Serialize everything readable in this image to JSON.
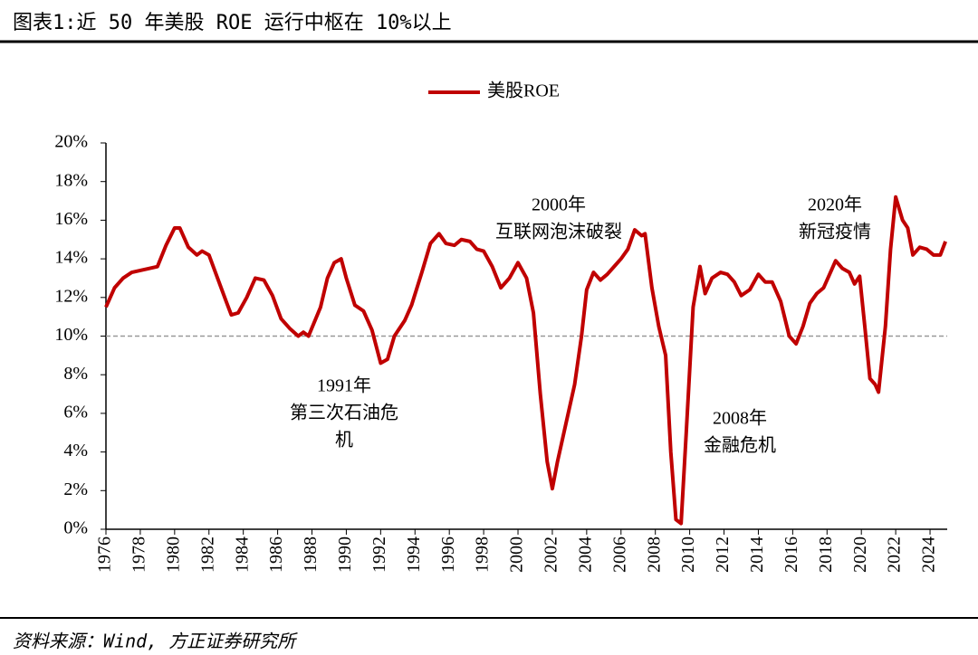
{
  "chart_data": {
    "type": "line",
    "title": "图表1:近 50 年美股 ROE 运行中枢在 10%以上",
    "source": "资料来源：Wind, 方正证券研究所",
    "x": [
      1976.0,
      1976.5,
      1977.0,
      1977.5,
      1978.0,
      1979.0,
      1979.5,
      1980.0,
      1980.3,
      1980.8,
      1981.3,
      1981.6,
      1982.0,
      1982.5,
      1983.0,
      1983.3,
      1983.7,
      1984.2,
      1984.7,
      1985.2,
      1985.7,
      1986.2,
      1986.7,
      1987.2,
      1987.5,
      1987.8,
      1988.5,
      1988.9,
      1989.3,
      1989.7,
      1990.0,
      1990.5,
      1991.0,
      1991.5,
      1992.0,
      1992.4,
      1992.8,
      1993.4,
      1993.8,
      1994.4,
      1994.9,
      1995.4,
      1995.8,
      1996.3,
      1996.7,
      1997.2,
      1997.6,
      1998.0,
      1998.5,
      1999.0,
      1999.5,
      2000.0,
      2000.5,
      2000.9,
      2001.3,
      2001.7,
      2002.0,
      2002.3,
      2002.8,
      2003.3,
      2003.7,
      2004.0,
      2004.4,
      2004.8,
      2005.2,
      2005.6,
      2006.0,
      2006.4,
      2006.8,
      2007.2,
      2007.4,
      2007.8,
      2008.2,
      2008.6,
      2008.9,
      2009.2,
      2009.5,
      2009.8,
      2010.2,
      2010.6,
      2010.9,
      2011.3,
      2011.8,
      2012.2,
      2012.6,
      2013.0,
      2013.5,
      2014.0,
      2014.4,
      2014.8,
      2015.3,
      2015.8,
      2016.2,
      2016.6,
      2017.0,
      2017.4,
      2017.8,
      2018.2,
      2018.5,
      2018.9,
      2019.3,
      2019.6,
      2019.9,
      2020.2,
      2020.5,
      2020.8,
      2021.0,
      2021.4,
      2021.7,
      2022.0,
      2022.4,
      2022.7,
      2023.0,
      2023.4,
      2023.8,
      2024.2,
      2024.6,
      2024.9
    ],
    "series": [
      {
        "name": "美股ROE",
        "color": "#c00000",
        "values": [
          11.5,
          12.5,
          13.0,
          13.3,
          13.4,
          13.6,
          14.7,
          15.6,
          15.6,
          14.6,
          14.2,
          14.4,
          14.2,
          13.0,
          11.8,
          11.1,
          11.2,
          12.0,
          13.0,
          12.9,
          12.1,
          10.9,
          10.4,
          10.0,
          10.2,
          10.0,
          11.5,
          13.0,
          13.8,
          14.0,
          13.0,
          11.6,
          11.3,
          10.3,
          8.6,
          8.8,
          10.0,
          10.8,
          11.6,
          13.3,
          14.8,
          15.3,
          14.8,
          14.7,
          15.0,
          14.9,
          14.5,
          14.4,
          13.6,
          12.5,
          13.0,
          13.8,
          13.0,
          11.2,
          7.0,
          3.5,
          2.1,
          3.5,
          5.5,
          7.5,
          10.0,
          12.4,
          13.3,
          12.9,
          13.2,
          13.6,
          14.0,
          14.5,
          15.5,
          15.2,
          15.3,
          12.5,
          10.5,
          9.0,
          4.0,
          0.5,
          0.3,
          5.0,
          11.5,
          13.6,
          12.2,
          13.0,
          13.3,
          13.2,
          12.8,
          12.1,
          12.4,
          13.2,
          12.8,
          12.8,
          11.8,
          10.0,
          9.6,
          10.5,
          11.7,
          12.2,
          12.5,
          13.3,
          13.9,
          13.5,
          13.3,
          12.7,
          13.1,
          10.5,
          7.8,
          7.5,
          7.1,
          10.5,
          14.5,
          17.2,
          16.0,
          15.6,
          14.2,
          14.6,
          14.5,
          14.2,
          14.2,
          14.9
        ]
      }
    ],
    "reference_line": 10,
    "xlim": [
      1976,
      2025
    ],
    "xticks": [
      1976,
      1978,
      1980,
      1982,
      1984,
      1986,
      1988,
      1990,
      1992,
      1994,
      1996,
      1998,
      2000,
      2002,
      2004,
      2006,
      2008,
      2010,
      2012,
      2014,
      2016,
      2018,
      2020,
      2022,
      2024
    ],
    "ylim": [
      0,
      20
    ],
    "yticks": [
      {
        "value": 0,
        "label": "0%"
      },
      {
        "value": 2,
        "label": "2%"
      },
      {
        "value": 4,
        "label": "4%"
      },
      {
        "value": 6,
        "label": "6%"
      },
      {
        "value": 8,
        "label": "8%"
      },
      {
        "value": 10,
        "label": "10%"
      },
      {
        "value": 12,
        "label": "12%"
      },
      {
        "value": 14,
        "label": "14%"
      },
      {
        "value": 16,
        "label": "16%"
      },
      {
        "value": 18,
        "label": "18%"
      },
      {
        "value": 20,
        "label": "20%"
      }
    ],
    "annotations": [
      {
        "lines": [
          "2000年",
          "互联网泡沫破裂"
        ]
      },
      {
        "lines": [
          "1991年",
          "第三次石油危",
          "机"
        ]
      },
      {
        "lines": [
          "2008年",
          "金融危机"
        ]
      },
      {
        "lines": [
          "2020年",
          "新冠疫情"
        ]
      }
    ]
  }
}
